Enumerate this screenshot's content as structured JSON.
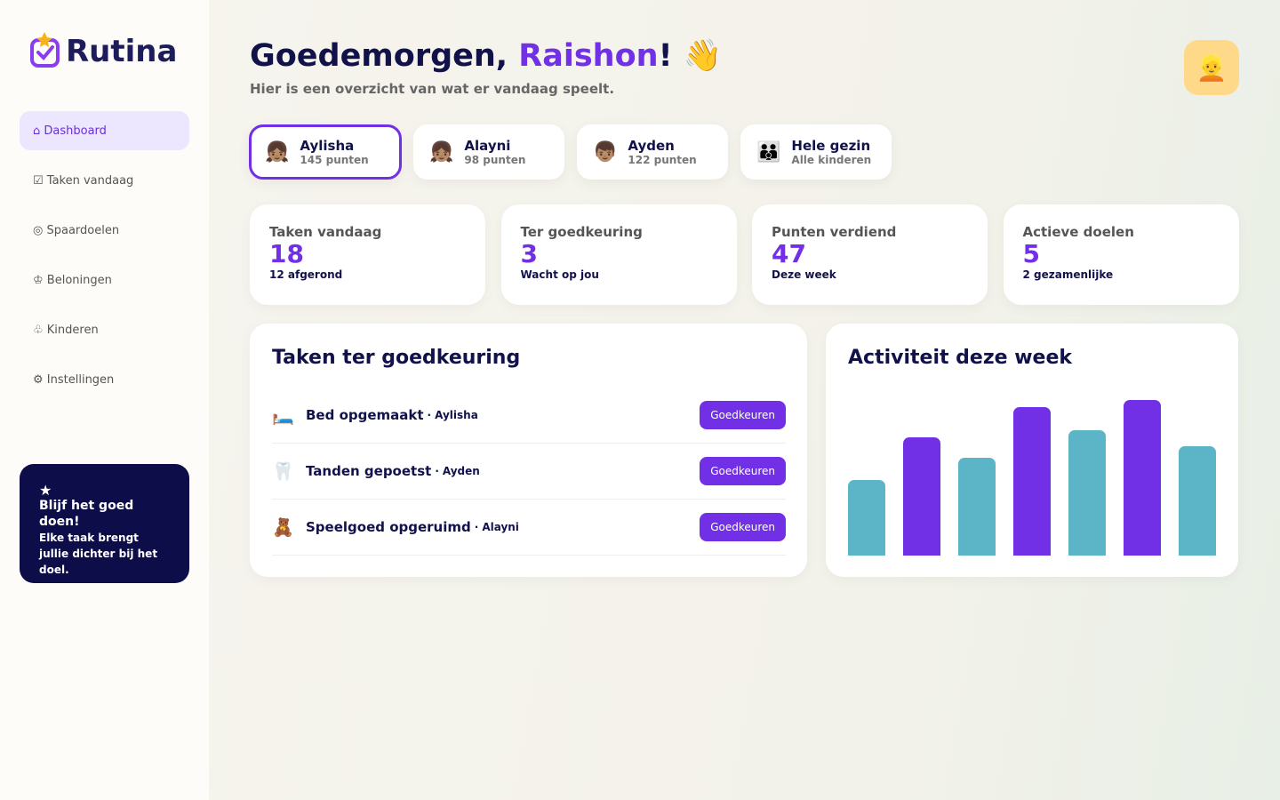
{
  "sidebar": {
    "brand": "Rutina",
    "nav": [
      {
        "label": "⌂ Dashboard",
        "active": true
      },
      {
        "label": "☑ Taken vandaag",
        "active": false
      },
      {
        "label": "◎ Spaardoelen",
        "active": false
      },
      {
        "label": "♔ Beloningen",
        "active": false
      },
      {
        "label": "♧ Kinderen",
        "active": false
      },
      {
        "label": "⚙ Instellingen",
        "active": false
      }
    ],
    "promo": {
      "icon": "★",
      "title": "Blijf het goed doen!",
      "text": "Elke taak brengt jullie dichter bij het doel."
    }
  },
  "header": {
    "greeting": "Goedemorgen,",
    "name": "Raishon",
    "punctuation": "!",
    "emoji": "👋",
    "subtitle": "Hier is een overzicht van wat er vandaag speelt.",
    "avatar": "👱"
  },
  "kids": [
    {
      "emoji": "👧🏽",
      "name": "Aylisha",
      "points": "145 punten",
      "selected": true
    },
    {
      "emoji": "👧🏽",
      "name": "Alayni",
      "points": "98 punten",
      "selected": false
    },
    {
      "emoji": "👦🏽",
      "name": "Ayden",
      "points": "122 punten",
      "selected": false
    },
    {
      "emoji": "👪",
      "name": "Hele gezin",
      "points": "Alle kinderen",
      "selected": false
    }
  ],
  "stats": [
    {
      "label": "Taken vandaag",
      "value": 18,
      "note": "12 afgerond"
    },
    {
      "label": "Ter goedkeuring",
      "value": 3,
      "note": "Wacht op jou"
    },
    {
      "label": "Punten verdiend",
      "value": 47,
      "note": "Deze week"
    },
    {
      "label": "Actieve doelen",
      "value": 5,
      "note": "2 gezamenlijke"
    }
  ],
  "approvals": {
    "title": "Taken ter goedkeuring",
    "separator": "·",
    "items": [
      {
        "icon": "🛏️",
        "task": "Bed opgemaakt",
        "child": "Aylisha",
        "action": "Goedkeuren"
      },
      {
        "icon": "🦷",
        "task": "Tanden gepoetst",
        "child": "Ayden",
        "action": "Goedkeuren"
      },
      {
        "icon": "🧸",
        "task": "Speelgoed opgeruimd",
        "child": "Alayni",
        "action": "Goedkeuren"
      }
    ]
  },
  "activity": {
    "title": "Activiteit deze week",
    "values": [
      85,
      133,
      110,
      167,
      141,
      175,
      123
    ],
    "colors": [
      "#5bb5c7",
      "#7230e6",
      "#5bb5c7",
      "#7230e6",
      "#5bb5c7",
      "#7230e6",
      "#5bb5c7"
    ]
  }
}
